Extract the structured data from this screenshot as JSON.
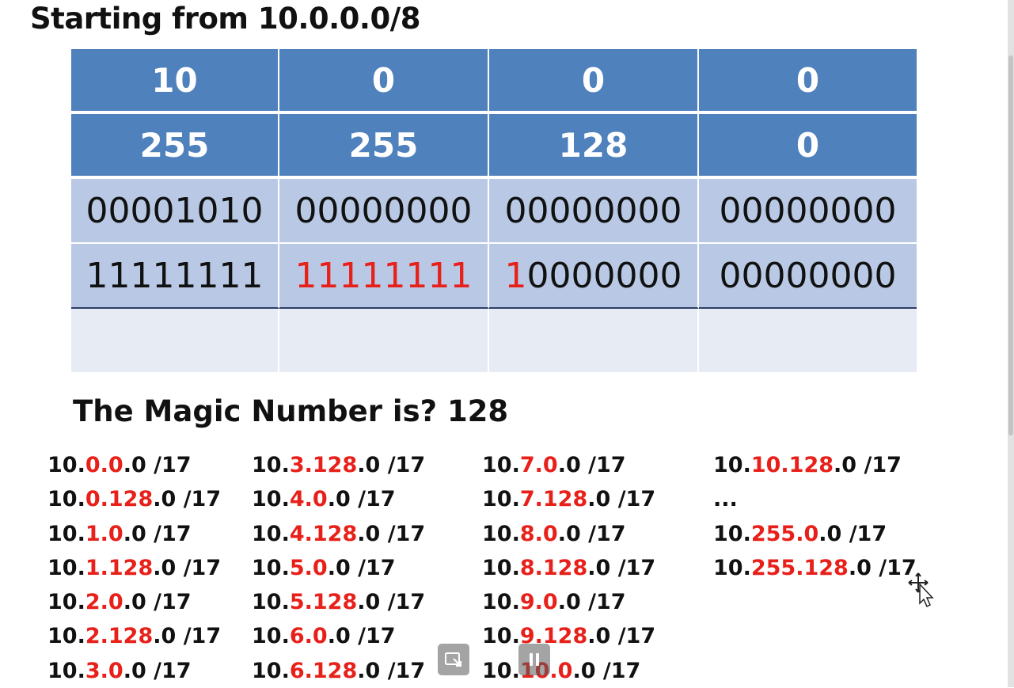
{
  "slide": {
    "title": "Starting from 10.0.0.0/8",
    "table": {
      "ip_octets": [
        "10",
        "0",
        "0",
        "0"
      ],
      "mask_octets": [
        "255",
        "255",
        "128",
        "0"
      ],
      "ip_binary": [
        "00001010",
        "00000000",
        "00000000",
        "00000000"
      ],
      "mask_binary": [
        {
          "red": "",
          "black": "11111111"
        },
        {
          "red": "11111111",
          "black": ""
        },
        {
          "red": "1",
          "black": "0000000"
        },
        {
          "red": "",
          "black": "00000000"
        }
      ]
    },
    "magic_label": "The Magic Number is? 128",
    "subnets": [
      [
        {
          "a": "10.",
          "r": "0.0",
          "b": ".0 /17"
        },
        {
          "a": "10.",
          "r": "0.128",
          "b": ".0 /17"
        },
        {
          "a": "10.",
          "r": "1.0",
          "b": ".0 /17"
        },
        {
          "a": "10.",
          "r": "1.128",
          "b": ".0 /17"
        },
        {
          "a": "10.",
          "r": "2.0",
          "b": ".0 /17"
        },
        {
          "a": "10.",
          "r": "2.128",
          "b": ".0 /17"
        },
        {
          "a": "10.",
          "r": "3.0",
          "b": ".0 /17"
        }
      ],
      [
        {
          "a": "10.",
          "r": "3.128",
          "b": ".0 /17"
        },
        {
          "a": "10.",
          "r": "4.0",
          "b": ".0 /17"
        },
        {
          "a": "10.",
          "r": "4.128",
          "b": ".0 /17"
        },
        {
          "a": "10.",
          "r": "5.0",
          "b": ".0 /17"
        },
        {
          "a": "10.",
          "r": "5.128",
          "b": ".0 /17"
        },
        {
          "a": "10.",
          "r": "6.0",
          "b": ".0 /17"
        },
        {
          "a": "10.",
          "r": "6.128",
          "b": ".0 /17"
        }
      ],
      [
        {
          "a": "10.",
          "r": "7.0",
          "b": ".0 /17"
        },
        {
          "a": "10.",
          "r": "7.128",
          "b": ".0 /17"
        },
        {
          "a": "10.",
          "r": "8.0",
          "b": ".0 /17"
        },
        {
          "a": "10.",
          "r": "8.128",
          "b": ".0 /17"
        },
        {
          "a": "10.",
          "r": "9.0",
          "b": ".0 /17"
        },
        {
          "a": "10.",
          "r": "9.128",
          "b": ".0 /17"
        },
        {
          "a": "10.",
          "r": "10.0",
          "b": ".0 /17"
        }
      ],
      [
        {
          "a": "10.",
          "r": "10.128",
          "b": ".0 /17"
        },
        {
          "a": "...",
          "r": "",
          "b": ""
        },
        {
          "a": "10.",
          "r": "255.0",
          "b": ".0 /17"
        },
        {
          "a": "10.",
          "r": "255.128",
          "b": ".0 /17"
        }
      ]
    ]
  },
  "colors": {
    "header_blue": "#4f81bd",
    "binary_row_blue": "#b9c9e5",
    "empty_row": "#e6ebf4",
    "highlight_red": "#e8201a"
  },
  "player_controls": {
    "fit_icon": "screen-fit-icon",
    "pause_icon": "pause-icon"
  }
}
